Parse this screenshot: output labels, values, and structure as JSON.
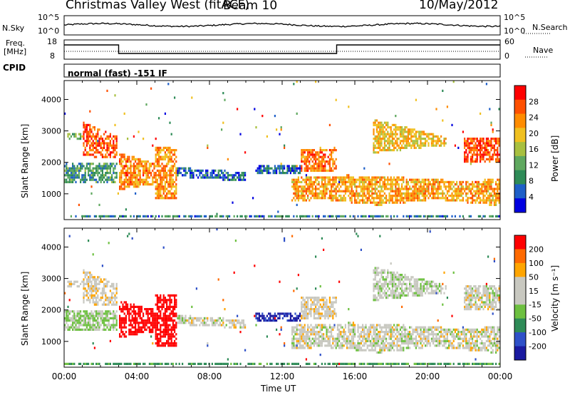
{
  "header": {
    "station": "Christmas Valley West (fitACF)",
    "beam": "Beam 10",
    "date": "10/May/2012"
  },
  "top_panels": {
    "nsky_label": "N.Sky",
    "nsky_ticks": [
      "10^5",
      "10^0"
    ],
    "nsearch_label": "N.Search",
    "nsearch_ticks": [
      "10^5",
      "10^0"
    ],
    "freq_label": "Freq.",
    "freq_unit": "[MHz]",
    "freq_ticks": [
      "18",
      "8"
    ],
    "nave_label": "Nave",
    "nave_ticks": [
      "60",
      "0"
    ],
    "cpid_label": "CPID",
    "cpid_value": "normal (fast) -151 IF"
  },
  "colors": {
    "power_scale": [
      "#0000e0",
      "#1e5fc8",
      "#2e8b57",
      "#5fa85f",
      "#a8c040",
      "#f0c020",
      "#ff8c00",
      "#ff5000",
      "#ff0000"
    ],
    "velocity_scale": [
      "#1a1aa0",
      "#2e50c8",
      "#2e8b57",
      "#6dc040",
      "#c8c8c0",
      "#c8c8c0",
      "#ffa500",
      "#ff6a00",
      "#ff0000"
    ]
  },
  "chart_data": [
    {
      "type": "heatmap",
      "name": "power",
      "ylabel": "Slant Range [km]",
      "yticks": [
        "4000",
        "3000",
        "2000",
        "1000"
      ],
      "ylim": [
        180,
        4600
      ],
      "x_ticks": [
        "00:00",
        "04:00",
        "08:00",
        "12:00",
        "16:00",
        "20:00",
        "00:00"
      ],
      "xlim_hours": [
        0,
        24
      ],
      "colorbar_label": "Power [dB]",
      "colorbar_ticks": [
        "28",
        "24",
        "20",
        "16",
        "12",
        "8",
        "4"
      ],
      "clim": [
        0,
        32
      ]
    },
    {
      "type": "heatmap",
      "name": "velocity",
      "ylabel": "Slant Range [km]",
      "yticks": [
        "4000",
        "3000",
        "2000",
        "1000"
      ],
      "ylim": [
        180,
        4600
      ],
      "x_ticks": [
        "00:00",
        "04:00",
        "08:00",
        "12:00",
        "16:00",
        "20:00",
        "00:00"
      ],
      "xlim_hours": [
        0,
        24
      ],
      "xlabel": "Time UT",
      "colorbar_label": "Velocity [m s⁻¹]",
      "colorbar_ticks": [
        "200",
        "100",
        "50",
        "15",
        "-15",
        "-50",
        "-100",
        "-200"
      ],
      "clim": [
        -250,
        250
      ]
    }
  ]
}
